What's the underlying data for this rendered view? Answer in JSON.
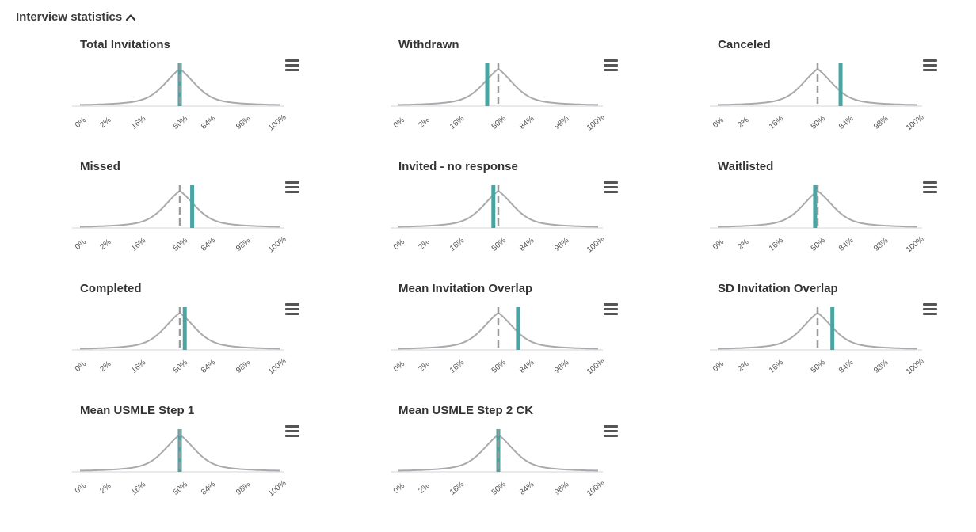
{
  "section": {
    "title": "Interview statistics",
    "toggle_icon": "chevron-up-icon"
  },
  "colors": {
    "curve": "#aaaaae",
    "baseline": "#d4d4d8",
    "median": "#9a9a9a",
    "marker": "#4aa5a2",
    "menu_icon": "#555555"
  },
  "chart_data": [
    {
      "type": "line",
      "title": "Total Invitations",
      "percentile_ticks": [
        "0%",
        "2%",
        "16%",
        "50%",
        "84%",
        "98%",
        "100%"
      ],
      "distribution": "bell curve",
      "median_percentile": 50,
      "marker_percentile": 50
    },
    {
      "type": "line",
      "title": "Withdrawn",
      "percentile_ticks": [
        "0%",
        "2%",
        "16%",
        "50%",
        "84%",
        "98%",
        "100%"
      ],
      "distribution": "bell curve",
      "median_percentile": 50,
      "marker_percentile": 41
    },
    {
      "type": "line",
      "title": "Canceled",
      "percentile_ticks": [
        "0%",
        "2%",
        "16%",
        "50%",
        "84%",
        "98%",
        "100%"
      ],
      "distribution": "bell curve",
      "median_percentile": 50,
      "marker_percentile": 78
    },
    {
      "type": "line",
      "title": "Missed",
      "percentile_ticks": [
        "0%",
        "2%",
        "16%",
        "50%",
        "84%",
        "98%",
        "100%"
      ],
      "distribution": "bell curve",
      "median_percentile": 50,
      "marker_percentile": 65
    },
    {
      "type": "line",
      "title": "Invited - no response",
      "percentile_ticks": [
        "0%",
        "2%",
        "16%",
        "50%",
        "84%",
        "98%",
        "100%"
      ],
      "distribution": "bell curve",
      "median_percentile": 50,
      "marker_percentile": 46
    },
    {
      "type": "line",
      "title": "Waitlisted",
      "percentile_ticks": [
        "0%",
        "2%",
        "16%",
        "50%",
        "84%",
        "98%",
        "100%"
      ],
      "distribution": "bell curve",
      "median_percentile": 50,
      "marker_percentile": 48
    },
    {
      "type": "line",
      "title": "Completed",
      "percentile_ticks": [
        "0%",
        "2%",
        "16%",
        "50%",
        "84%",
        "98%",
        "100%"
      ],
      "distribution": "bell curve",
      "median_percentile": 50,
      "marker_percentile": 56
    },
    {
      "type": "line",
      "title": "Mean Invitation Overlap",
      "percentile_ticks": [
        "0%",
        "2%",
        "16%",
        "50%",
        "84%",
        "98%",
        "100%"
      ],
      "distribution": "bell curve",
      "median_percentile": 50,
      "marker_percentile": 74
    },
    {
      "type": "line",
      "title": "SD Invitation Overlap",
      "percentile_ticks": [
        "0%",
        "2%",
        "16%",
        "50%",
        "84%",
        "98%",
        "100%"
      ],
      "distribution": "bell curve",
      "median_percentile": 50,
      "marker_percentile": 68
    },
    {
      "type": "line",
      "title": "Mean USMLE Step 1",
      "percentile_ticks": [
        "0%",
        "2%",
        "16%",
        "50%",
        "84%",
        "98%",
        "100%"
      ],
      "distribution": "bell curve",
      "median_percentile": 50,
      "marker_percentile": 50
    },
    {
      "type": "line",
      "title": "Mean USMLE Step 2 CK",
      "percentile_ticks": [
        "0%",
        "2%",
        "16%",
        "50%",
        "84%",
        "98%",
        "100%"
      ],
      "distribution": "bell curve",
      "median_percentile": 50,
      "marker_percentile": 50
    }
  ]
}
